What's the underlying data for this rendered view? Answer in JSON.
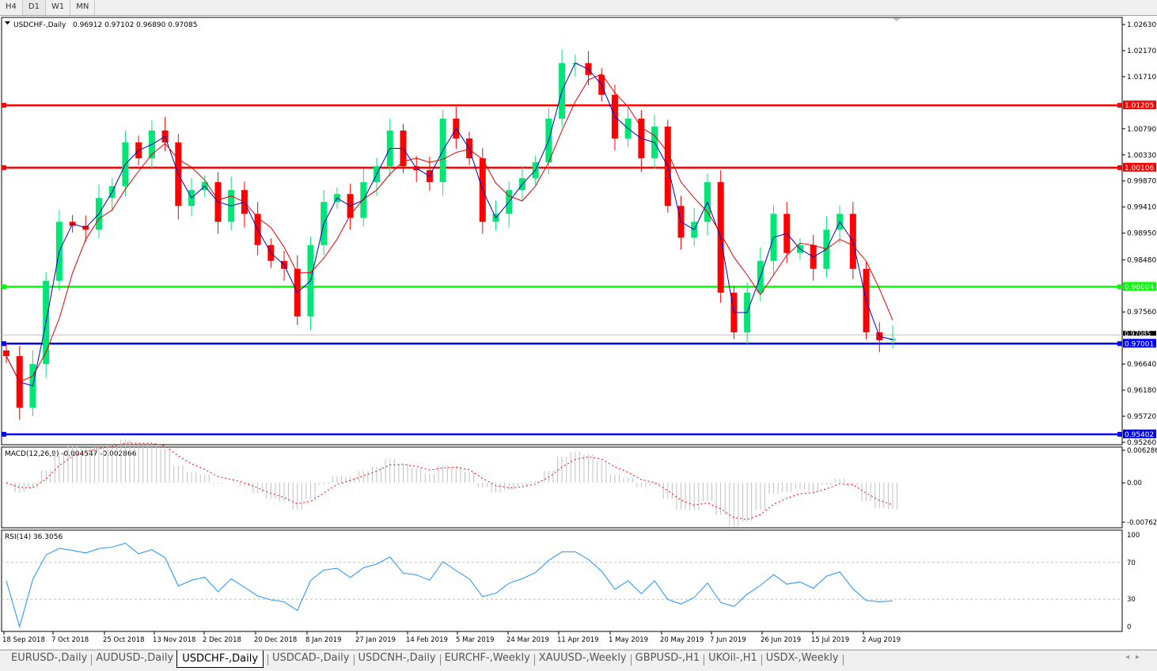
{
  "toolbar": {
    "timeframes": [
      "H4",
      "D1",
      "W1",
      "MN"
    ],
    "active": "D1"
  },
  "chart": {
    "symbol_header": "USDCHF-,Daily",
    "ohlc_header": "0.96912 0.97102 0.96890 0.97085",
    "macd_header": "MACD(12,26,9) -0.004547 -0.002866",
    "rsi_header": "RSI(14) 36.3056",
    "colors": {
      "bull": "#00e676",
      "bear": "#ff0000",
      "ma_fast": "#0000cc",
      "ma_slow": "#e00000",
      "grid_line": "#c0c0c0"
    }
  },
  "chart_data": {
    "type": "candlestick",
    "price_axis_ticks": [
      "1.02630",
      "1.02170",
      "1.01710",
      "1.00790",
      "1.00330",
      "0.99870",
      "0.99410",
      "0.98950",
      "0.98480",
      "0.97560",
      "0.96640",
      "0.96180",
      "0.95720",
      "0.95260"
    ],
    "ylim": [
      0.9526,
      1.0263
    ],
    "x_ticks": [
      "18 Sep 2018",
      "7 Oct 2018",
      "25 Oct 2018",
      "13 Nov 2018",
      "2 Dec 2018",
      "20 Dec 2018",
      "8 Jan 2019",
      "27 Jan 2019",
      "14 Feb 2019",
      "5 Mar 2019",
      "24 Mar 2019",
      "11 Apr 2019",
      "1 May 2019",
      "20 May 2019",
      "7 Jun 2019",
      "26 Jun 2019",
      "15 Jul 2019",
      "2 Aug 2019"
    ],
    "closes": [
      0.9678,
      0.9587,
      0.9664,
      0.9811,
      0.9915,
      0.9908,
      0.9901,
      0.9957,
      0.9978,
      1.0055,
      1.0027,
      1.0076,
      1.0055,
      0.9943,
      0.9971,
      0.9985,
      0.9915,
      0.9971,
      0.9929,
      0.9874,
      0.9846,
      0.9832,
      0.9748,
      0.9874,
      0.995,
      0.9964,
      0.9922,
      0.9985,
      1.0013,
      1.0076,
      1.0013,
      1.0006,
      0.9985,
      1.0097,
      1.0062,
      1.0027,
      0.9915,
      0.9929,
      0.9971,
      0.9992,
      1.002,
      1.0097,
      1.0195,
      1.0195,
      1.0174,
      1.0139,
      1.0062,
      1.0097,
      1.0027,
      1.0083,
      0.9943,
      0.9887,
      0.9915,
      0.9985,
      0.979,
      0.972,
      0.979,
      0.9846,
      0.9929,
      0.986,
      0.9874,
      0.9832,
      0.9901,
      0.9929,
      0.9832,
      0.972,
      0.9706,
      0.97085
    ],
    "horizontal_lines": [
      {
        "price": 1.01205,
        "label": "1.01205",
        "color": "#ff0000"
      },
      {
        "price": 1.00106,
        "label": "1.00106",
        "color": "#ff0000"
      },
      {
        "price": 0.98004,
        "label": "0.98004",
        "color": "#00ff00"
      },
      {
        "price": 0.97001,
        "label": "0.97001",
        "color": "#0000ff"
      },
      {
        "price": 0.95402,
        "label": "0.95402",
        "color": "#0000ff"
      }
    ],
    "current_price": {
      "price": 0.97085,
      "label": "0.97085"
    },
    "macd": {
      "axis_ticks": [
        "0.006286",
        "0.00",
        "-0.00762"
      ],
      "ylim": [
        -0.00762,
        0.006286
      ]
    },
    "rsi": {
      "axis_ticks": [
        "100",
        "70",
        "30",
        "0"
      ],
      "levels": [
        70,
        30
      ]
    }
  },
  "tabs": [
    "EURUSD-,Daily",
    "AUDUSD-,Daily",
    "USDCHF-,Daily",
    "USDCAD-,Daily",
    "USDCNH-,Daily",
    "EURCHF-,Weekly",
    "XAUUSD-,Weekly",
    "GBPUSD-,H1",
    "UKOil-,H1",
    "USDX-,Weekly"
  ],
  "active_tab": "USDCHF-,Daily"
}
